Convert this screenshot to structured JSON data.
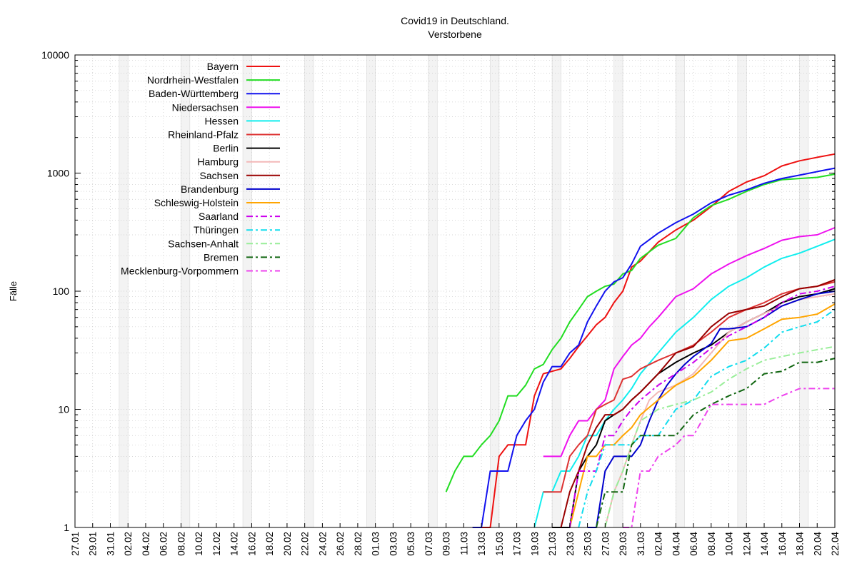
{
  "chart_data": {
    "type": "line",
    "title": "Covid19 in Deutschland.",
    "subtitle": "Verstorbene",
    "ylabel": "Fälle",
    "yscale": "log",
    "ylim": [
      1,
      10000
    ],
    "y_ticks": [
      "1",
      "10",
      "100",
      "1000",
      "10000"
    ],
    "x_tick_labels": [
      "27.01",
      "29.01",
      "31.01",
      "02.02",
      "04.02",
      "06.02",
      "08.02",
      "10.02",
      "12.02",
      "14.02",
      "16.02",
      "18.02",
      "20.02",
      "22.02",
      "24.02",
      "26.02",
      "28.02",
      "01.03",
      "03.03",
      "05.03",
      "07.03",
      "09.03",
      "11.03",
      "13.03",
      "15.03",
      "17.03",
      "19.03",
      "21.03",
      "23.03",
      "25.03",
      "27.03",
      "29.03",
      "31.03",
      "02.04",
      "04.04",
      "06.04",
      "08.04",
      "10.04",
      "12.04",
      "14.04",
      "16.04",
      "18.04",
      "20.04",
      "22.04"
    ],
    "grid": true,
    "legend_position": "top-left",
    "series": [
      {
        "name": "Bayern",
        "color": "#ee1111",
        "dash": "solid",
        "x": [
          "2020-03-12",
          "2020-03-13",
          "2020-03-14",
          "2020-03-15",
          "2020-03-16",
          "2020-03-17",
          "2020-03-18",
          "2020-03-19",
          "2020-03-20",
          "2020-03-21",
          "2020-03-22",
          "2020-03-23",
          "2020-03-24",
          "2020-03-25",
          "2020-03-26",
          "2020-03-27",
          "2020-03-28",
          "2020-03-29",
          "2020-03-30",
          "2020-03-31",
          "2020-04-02",
          "2020-04-04",
          "2020-04-06",
          "2020-04-08",
          "2020-04-10",
          "2020-04-12",
          "2020-04-14",
          "2020-04-16",
          "2020-04-18",
          "2020-04-20",
          "2020-04-22"
        ],
        "y": [
          1,
          1,
          1,
          4,
          5,
          5,
          5,
          13,
          20,
          21,
          22,
          27,
          34,
          42,
          52,
          60,
          80,
          100,
          160,
          180,
          260,
          330,
          400,
          520,
          700,
          840,
          950,
          1150,
          1270,
          1360,
          1450
        ]
      },
      {
        "name": "Nordrhein-Westfalen",
        "color": "#22dd22",
        "dash": "solid",
        "x": [
          "2020-03-09",
          "2020-03-10",
          "2020-03-11",
          "2020-03-12",
          "2020-03-13",
          "2020-03-14",
          "2020-03-15",
          "2020-03-16",
          "2020-03-17",
          "2020-03-18",
          "2020-03-19",
          "2020-03-20",
          "2020-03-21",
          "2020-03-22",
          "2020-03-23",
          "2020-03-24",
          "2020-03-25",
          "2020-03-26",
          "2020-03-27",
          "2020-03-28",
          "2020-03-29",
          "2020-03-30",
          "2020-03-31",
          "2020-04-02",
          "2020-04-04",
          "2020-04-06",
          "2020-04-08",
          "2020-04-10",
          "2020-04-12",
          "2020-04-14",
          "2020-04-16",
          "2020-04-18",
          "2020-04-20",
          "2020-04-22"
        ],
        "y": [
          2,
          3,
          4,
          4,
          5,
          6,
          8,
          13,
          13,
          16,
          22,
          24,
          32,
          40,
          55,
          70,
          90,
          100,
          110,
          115,
          140,
          150,
          190,
          245,
          280,
          420,
          530,
          600,
          700,
          800,
          880,
          900,
          920,
          980
        ]
      },
      {
        "name": "Baden-Württemberg",
        "color": "#1111ee",
        "dash": "solid",
        "x": [
          "2020-03-12",
          "2020-03-13",
          "2020-03-14",
          "2020-03-15",
          "2020-03-16",
          "2020-03-17",
          "2020-03-18",
          "2020-03-19",
          "2020-03-20",
          "2020-03-21",
          "2020-03-22",
          "2020-03-23",
          "2020-03-24",
          "2020-03-25",
          "2020-03-26",
          "2020-03-27",
          "2020-03-28",
          "2020-03-29",
          "2020-03-30",
          "2020-03-31",
          "2020-04-02",
          "2020-04-04",
          "2020-04-06",
          "2020-04-08",
          "2020-04-10",
          "2020-04-12",
          "2020-04-14",
          "2020-04-16",
          "2020-04-18",
          "2020-04-20",
          "2020-04-22"
        ],
        "y": [
          1,
          1,
          3,
          3,
          3,
          6,
          8,
          10,
          17,
          23,
          23,
          30,
          35,
          55,
          75,
          100,
          120,
          130,
          170,
          240,
          310,
          380,
          450,
          560,
          650,
          720,
          820,
          900,
          960,
          1030,
          1100
        ]
      },
      {
        "name": "Niedersachsen",
        "color": "#ee11ee",
        "dash": "solid",
        "x": [
          "2020-03-20",
          "2020-03-21",
          "2020-03-22",
          "2020-03-23",
          "2020-03-24",
          "2020-03-25",
          "2020-03-26",
          "2020-03-27",
          "2020-03-28",
          "2020-03-29",
          "2020-03-30",
          "2020-03-31",
          "2020-04-01",
          "2020-04-02",
          "2020-04-04",
          "2020-04-06",
          "2020-04-08",
          "2020-04-10",
          "2020-04-12",
          "2020-04-14",
          "2020-04-16",
          "2020-04-18",
          "2020-04-20",
          "2020-04-22"
        ],
        "y": [
          4,
          4,
          4,
          6,
          8,
          8,
          10,
          12,
          22,
          28,
          35,
          40,
          50,
          60,
          90,
          105,
          140,
          170,
          200,
          230,
          270,
          290,
          300,
          345
        ]
      },
      {
        "name": "Hessen",
        "color": "#11eeee",
        "dash": "solid",
        "x": [
          "2020-03-19",
          "2020-03-20",
          "2020-03-21",
          "2020-03-22",
          "2020-03-23",
          "2020-03-24",
          "2020-03-25",
          "2020-03-26",
          "2020-03-27",
          "2020-03-28",
          "2020-03-29",
          "2020-03-30",
          "2020-03-31",
          "2020-04-02",
          "2020-04-04",
          "2020-04-06",
          "2020-04-08",
          "2020-04-10",
          "2020-04-12",
          "2020-04-14",
          "2020-04-16",
          "2020-04-18",
          "2020-04-20",
          "2020-04-22"
        ],
        "y": [
          1,
          2,
          2,
          3,
          3,
          4,
          6,
          6,
          8,
          10,
          12,
          15,
          20,
          30,
          45,
          60,
          85,
          110,
          130,
          160,
          190,
          210,
          240,
          275
        ]
      },
      {
        "name": "Rheinland-Pfalz",
        "color": "#dd3333",
        "dash": "solid",
        "x": [
          "2020-03-20",
          "2020-03-22",
          "2020-03-23",
          "2020-03-24",
          "2020-03-25",
          "2020-03-26",
          "2020-03-27",
          "2020-03-28",
          "2020-03-29",
          "2020-03-30",
          "2020-03-31",
          "2020-04-02",
          "2020-04-04",
          "2020-04-06",
          "2020-04-08",
          "2020-04-10",
          "2020-04-12",
          "2020-04-14",
          "2020-04-16",
          "2020-04-18",
          "2020-04-20",
          "2020-04-22"
        ],
        "y": [
          2,
          2,
          4,
          5,
          6,
          10,
          11,
          12,
          18,
          19,
          22,
          26,
          30,
          35,
          45,
          60,
          70,
          80,
          95,
          105,
          110,
          120
        ]
      },
      {
        "name": "Berlin",
        "color": "#000000",
        "dash": "solid",
        "x": [
          "2020-03-21",
          "2020-03-22",
          "2020-03-23",
          "2020-03-24",
          "2020-03-25",
          "2020-03-26",
          "2020-03-27",
          "2020-03-28",
          "2020-03-29",
          "2020-03-30",
          "2020-03-31",
          "2020-04-02",
          "2020-04-04",
          "2020-04-06",
          "2020-04-08",
          "2020-04-10",
          "2020-04-12",
          "2020-04-14",
          "2020-04-16",
          "2020-04-18",
          "2020-04-20",
          "2020-04-22"
        ],
        "y": [
          1,
          1,
          1,
          3,
          4,
          5,
          8,
          9,
          10,
          12,
          14,
          20,
          25,
          30,
          35,
          45,
          55,
          65,
          80,
          90,
          95,
          105
        ]
      },
      {
        "name": "Hamburg",
        "color": "#f3b8b8",
        "dash": "solid",
        "x": [
          "2020-03-27",
          "2020-03-28",
          "2020-03-29",
          "2020-03-30",
          "2020-03-31",
          "2020-04-01",
          "2020-04-02",
          "2020-04-04",
          "2020-04-06",
          "2020-04-08",
          "2020-04-10",
          "2020-04-12",
          "2020-04-14",
          "2020-04-16",
          "2020-04-18",
          "2020-04-20",
          "2020-04-22"
        ],
        "y": [
          1,
          2,
          3,
          5,
          8,
          12,
          14,
          16,
          20,
          30,
          45,
          55,
          65,
          75,
          85,
          90,
          95
        ]
      },
      {
        "name": "Sachsen",
        "color": "#990000",
        "dash": "solid",
        "x": [
          "2020-03-22",
          "2020-03-23",
          "2020-03-24",
          "2020-03-25",
          "2020-03-26",
          "2020-03-27",
          "2020-03-28",
          "2020-03-29",
          "2020-03-30",
          "2020-03-31",
          "2020-04-02",
          "2020-04-04",
          "2020-04-06",
          "2020-04-08",
          "2020-04-10",
          "2020-04-12",
          "2020-04-14",
          "2020-04-16",
          "2020-04-18",
          "2020-04-20",
          "2020-04-22"
        ],
        "y": [
          1,
          2,
          3,
          5,
          7,
          9,
          9,
          10,
          12,
          14,
          20,
          30,
          34,
          50,
          65,
          70,
          75,
          90,
          105,
          110,
          125
        ]
      },
      {
        "name": "Brandenburg",
        "color": "#0000cc",
        "dash": "solid",
        "x": [
          "2020-03-25",
          "2020-03-26",
          "2020-03-27",
          "2020-03-28",
          "2020-03-29",
          "2020-03-30",
          "2020-03-31",
          "2020-04-01",
          "2020-04-02",
          "2020-04-03",
          "2020-04-04",
          "2020-04-05",
          "2020-04-06",
          "2020-04-08",
          "2020-04-09",
          "2020-04-10",
          "2020-04-12",
          "2020-04-14",
          "2020-04-16",
          "2020-04-18",
          "2020-04-20",
          "2020-04-22"
        ],
        "y": [
          1,
          1,
          3,
          4,
          4,
          4,
          5,
          8,
          12,
          16,
          20,
          24,
          28,
          36,
          48,
          48,
          50,
          60,
          75,
          85,
          95,
          100
        ]
      },
      {
        "name": "Schleswig-Holstein",
        "color": "#ffa500",
        "dash": "solid",
        "x": [
          "2020-03-23",
          "2020-03-24",
          "2020-03-25",
          "2020-03-26",
          "2020-03-27",
          "2020-03-28",
          "2020-03-29",
          "2020-03-30",
          "2020-03-31",
          "2020-04-02",
          "2020-04-04",
          "2020-04-06",
          "2020-04-08",
          "2020-04-10",
          "2020-04-12",
          "2020-04-14",
          "2020-04-16",
          "2020-04-18",
          "2020-04-20",
          "2020-04-22"
        ],
        "y": [
          1,
          2,
          4,
          4,
          5,
          5,
          6,
          7,
          9,
          12,
          16,
          19,
          26,
          38,
          40,
          48,
          58,
          60,
          64,
          78
        ]
      },
      {
        "name": "Saarland",
        "color": "#cc00ee",
        "dash": "dashdot",
        "x": [
          "2020-03-23",
          "2020-03-24",
          "2020-03-25",
          "2020-03-26",
          "2020-03-27",
          "2020-03-28",
          "2020-03-29",
          "2020-03-30",
          "2020-03-31",
          "2020-04-02",
          "2020-04-04",
          "2020-04-06",
          "2020-04-08",
          "2020-04-10",
          "2020-04-12",
          "2020-04-14",
          "2020-04-16",
          "2020-04-18",
          "2020-04-20",
          "2020-04-22"
        ],
        "y": [
          1,
          3,
          3,
          3,
          6,
          6,
          8,
          10,
          12,
          16,
          20,
          25,
          33,
          42,
          50,
          60,
          80,
          95,
          100,
          110
        ]
      },
      {
        "name": "Thüringen",
        "color": "#11ddee",
        "dash": "dashdot",
        "x": [
          "2020-03-24",
          "2020-03-25",
          "2020-03-26",
          "2020-03-27",
          "2020-03-28",
          "2020-03-29",
          "2020-03-30",
          "2020-03-31",
          "2020-04-02",
          "2020-04-04",
          "2020-04-06",
          "2020-04-08",
          "2020-04-10",
          "2020-04-12",
          "2020-04-14",
          "2020-04-16",
          "2020-04-18",
          "2020-04-20",
          "2020-04-22"
        ],
        "y": [
          1,
          2,
          3,
          5,
          5,
          5,
          5,
          6,
          6,
          10,
          12,
          19,
          23,
          26,
          33,
          45,
          50,
          55,
          70
        ]
      },
      {
        "name": "Sachsen-Anhalt",
        "color": "#99ee99",
        "dash": "dashdot",
        "x": [
          "2020-03-27",
          "2020-03-28",
          "2020-03-29",
          "2020-03-30",
          "2020-03-31",
          "2020-04-02",
          "2020-04-04",
          "2020-04-06",
          "2020-04-08",
          "2020-04-10",
          "2020-04-12",
          "2020-04-14",
          "2020-04-16",
          "2020-04-18",
          "2020-04-20",
          "2020-04-22"
        ],
        "y": [
          1,
          2,
          3,
          5,
          8,
          10,
          11,
          12,
          14,
          18,
          22,
          26,
          28,
          30,
          32,
          34
        ]
      },
      {
        "name": "Bremen",
        "color": "#116611",
        "dash": "dashdot",
        "x": [
          "2020-03-26",
          "2020-03-27",
          "2020-03-28",
          "2020-03-29",
          "2020-03-30",
          "2020-03-31",
          "2020-04-02",
          "2020-04-04",
          "2020-04-06",
          "2020-04-08",
          "2020-04-10",
          "2020-04-12",
          "2020-04-14",
          "2020-04-16",
          "2020-04-18",
          "2020-04-20",
          "2020-04-22"
        ],
        "y": [
          1,
          2,
          2,
          2,
          5,
          6,
          6,
          6,
          9,
          11,
          13,
          15,
          20,
          21,
          25,
          25,
          27
        ]
      },
      {
        "name": "Mecklenburg-Vorpommern",
        "color": "#ee44ee",
        "dash": "dashdot",
        "x": [
          "2020-03-29",
          "2020-03-30",
          "2020-03-31",
          "2020-04-01",
          "2020-04-02",
          "2020-04-04",
          "2020-04-05",
          "2020-04-06",
          "2020-04-08",
          "2020-04-14",
          "2020-04-15",
          "2020-04-16",
          "2020-04-18",
          "2020-04-20",
          "2020-04-22"
        ],
        "y": [
          1,
          1,
          3,
          3,
          4,
          5,
          6,
          6,
          11,
          11,
          12,
          13,
          15,
          15,
          15
        ]
      }
    ]
  }
}
